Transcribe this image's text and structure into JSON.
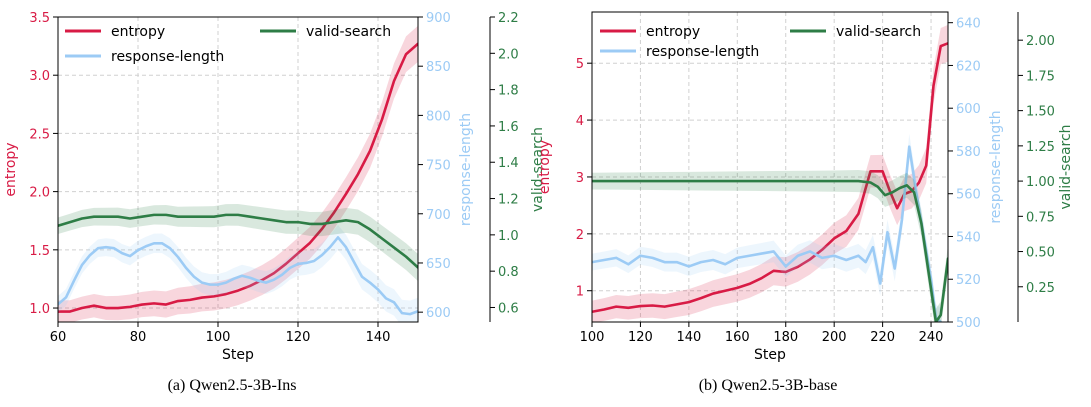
{
  "chart_data": [
    {
      "type": "line",
      "caption": "(a) Qwen2.5-3B-Ins",
      "xlabel": "Step",
      "xlim": [
        60,
        150
      ],
      "xticks": [
        60,
        80,
        100,
        120,
        140
      ],
      "grid": true,
      "legend_placement": "top",
      "axes": {
        "entropy": {
          "label": "entropy",
          "color": "#d81b45",
          "lim": [
            0.88,
            3.5
          ],
          "ticks": [
            1.0,
            1.5,
            2.0,
            2.5,
            3.0,
            3.5
          ],
          "tick_labels": [
            "1.0",
            "1.5",
            "2.0",
            "2.5",
            "3.0",
            "3.5"
          ],
          "position": "left"
        },
        "response-length": {
          "label": "response-length",
          "color": "#9ccbf5",
          "lim": [
            590,
            900
          ],
          "ticks": [
            600,
            650,
            700,
            750,
            800,
            850,
            900
          ],
          "tick_labels": [
            "600",
            "650",
            "700",
            "750",
            "800",
            "850",
            "900"
          ],
          "position": "right"
        },
        "valid-search": {
          "label": "valid-search",
          "color": "#2e7d46",
          "lim": [
            0.52,
            2.2
          ],
          "ticks": [
            0.6,
            0.8,
            1.0,
            1.2,
            1.4,
            1.6,
            1.8,
            2.0,
            2.2
          ],
          "tick_labels": [
            "0.6",
            "0.8",
            "1.0",
            "1.2",
            "1.4",
            "1.6",
            "1.8",
            "2.0",
            "2.2"
          ],
          "position": "right-outer"
        }
      },
      "series": [
        {
          "name": "entropy",
          "axis": "entropy",
          "x": [
            60,
            63,
            66,
            69,
            72,
            75,
            78,
            81,
            84,
            87,
            90,
            93,
            96,
            99,
            102,
            105,
            108,
            111,
            114,
            117,
            120,
            123,
            126,
            129,
            132,
            135,
            138,
            141,
            144,
            147,
            150
          ],
          "y": [
            0.97,
            0.97,
            1.0,
            1.02,
            1.0,
            1.0,
            1.01,
            1.03,
            1.04,
            1.03,
            1.06,
            1.07,
            1.09,
            1.1,
            1.12,
            1.15,
            1.19,
            1.24,
            1.3,
            1.38,
            1.47,
            1.56,
            1.68,
            1.82,
            1.98,
            2.15,
            2.35,
            2.62,
            2.95,
            3.18,
            3.27
          ]
        },
        {
          "name": "response-length",
          "axis": "response-length",
          "x": [
            60,
            62,
            64,
            66,
            68,
            70,
            72,
            74,
            76,
            78,
            80,
            82,
            84,
            86,
            88,
            90,
            92,
            94,
            96,
            98,
            100,
            102,
            104,
            106,
            108,
            110,
            112,
            114,
            116,
            118,
            120,
            122,
            124,
            126,
            128,
            130,
            132,
            134,
            136,
            138,
            140,
            142,
            144,
            146,
            148,
            150
          ],
          "y": [
            608,
            615,
            632,
            648,
            658,
            665,
            666,
            665,
            660,
            657,
            663,
            667,
            670,
            670,
            665,
            656,
            645,
            636,
            630,
            628,
            628,
            630,
            634,
            637,
            635,
            632,
            630,
            633,
            638,
            645,
            649,
            650,
            652,
            658,
            666,
            676,
            666,
            651,
            636,
            630,
            623,
            614,
            610,
            599,
            598,
            601
          ]
        },
        {
          "name": "valid-search",
          "axis": "valid-search",
          "x": [
            60,
            63,
            66,
            69,
            72,
            75,
            78,
            81,
            84,
            87,
            90,
            93,
            96,
            99,
            102,
            105,
            108,
            111,
            114,
            117,
            120,
            123,
            126,
            129,
            132,
            135,
            138,
            141,
            144,
            147,
            150
          ],
          "y": [
            1.05,
            1.07,
            1.09,
            1.1,
            1.1,
            1.1,
            1.09,
            1.1,
            1.11,
            1.11,
            1.1,
            1.1,
            1.1,
            1.1,
            1.11,
            1.11,
            1.1,
            1.09,
            1.08,
            1.07,
            1.07,
            1.06,
            1.06,
            1.07,
            1.08,
            1.07,
            1.03,
            0.98,
            0.93,
            0.88,
            0.82
          ]
        }
      ]
    },
    {
      "type": "line",
      "caption": "(b) Qwen2.5-3B-base",
      "xlabel": "Step",
      "xlim": [
        100,
        247
      ],
      "xticks": [
        100,
        120,
        140,
        160,
        180,
        200,
        220,
        240
      ],
      "grid": true,
      "legend_placement": "top",
      "axes": {
        "entropy": {
          "label": "entropy",
          "color": "#d81b45",
          "lim": [
            0.45,
            5.9
          ],
          "ticks": [
            1,
            2,
            3,
            4,
            5
          ],
          "tick_labels": [
            "1",
            "2",
            "3",
            "4",
            "5"
          ],
          "position": "left"
        },
        "response-length": {
          "label": "response-length",
          "color": "#9ccbf5",
          "lim": [
            500,
            645
          ],
          "ticks": [
            500,
            520,
            540,
            560,
            580,
            600,
            620,
            640
          ],
          "tick_labels": [
            "500",
            "520",
            "540",
            "560",
            "580",
            "600",
            "620",
            "640"
          ],
          "position": "right"
        },
        "valid-search": {
          "label": "valid-search",
          "color": "#2e7d46",
          "lim": [
            0.0,
            2.2
          ],
          "ticks": [
            0.25,
            0.5,
            0.75,
            1.0,
            1.25,
            1.5,
            1.75,
            2.0
          ],
          "tick_labels": [
            "0.25",
            "0.50",
            "0.75",
            "1.00",
            "1.25",
            "1.50",
            "1.75",
            "2.00"
          ],
          "position": "right-outer"
        }
      },
      "series": [
        {
          "name": "entropy",
          "axis": "entropy",
          "x": [
            100,
            105,
            110,
            115,
            120,
            125,
            130,
            135,
            140,
            145,
            150,
            155,
            160,
            165,
            170,
            175,
            180,
            185,
            190,
            195,
            200,
            205,
            210,
            215,
            220,
            223,
            226,
            229,
            232,
            235,
            238,
            241,
            244,
            247
          ],
          "y": [
            0.63,
            0.67,
            0.72,
            0.7,
            0.73,
            0.74,
            0.72,
            0.76,
            0.8,
            0.87,
            0.95,
            1.0,
            1.05,
            1.12,
            1.22,
            1.35,
            1.33,
            1.42,
            1.55,
            1.72,
            1.92,
            2.05,
            2.35,
            3.1,
            3.1,
            2.75,
            2.45,
            2.7,
            2.75,
            2.9,
            3.2,
            4.6,
            5.3,
            5.35
          ]
        },
        {
          "name": "response-length",
          "axis": "response-length",
          "x": [
            100,
            105,
            110,
            115,
            120,
            125,
            130,
            135,
            140,
            145,
            150,
            155,
            160,
            165,
            170,
            175,
            180,
            185,
            190,
            195,
            200,
            205,
            210,
            213,
            216,
            219,
            222,
            225,
            228,
            231,
            234,
            237,
            240,
            242,
            244
          ],
          "y": [
            528,
            529,
            530,
            527,
            531,
            530,
            528,
            528,
            526,
            528,
            529,
            527,
            530,
            531,
            532,
            533,
            526,
            531,
            533,
            530,
            531,
            529,
            531,
            528,
            535,
            518,
            542,
            525,
            548,
            582,
            560,
            540,
            520,
            502,
            500
          ]
        },
        {
          "name": "valid-search",
          "axis": "valid-search",
          "x": [
            100,
            110,
            120,
            130,
            140,
            150,
            160,
            170,
            180,
            190,
            200,
            205,
            210,
            215,
            218,
            221,
            224,
            227,
            230,
            233,
            236,
            239,
            242,
            244,
            247
          ],
          "y": [
            1.0,
            1.0,
            1.0,
            1.0,
            1.0,
            1.0,
            1.0,
            1.0,
            1.0,
            1.0,
            1.0,
            1.0,
            1.0,
            0.99,
            0.96,
            0.9,
            0.92,
            0.95,
            0.97,
            0.92,
            0.7,
            0.35,
            0.0,
            0.05,
            0.45
          ]
        }
      ]
    }
  ]
}
